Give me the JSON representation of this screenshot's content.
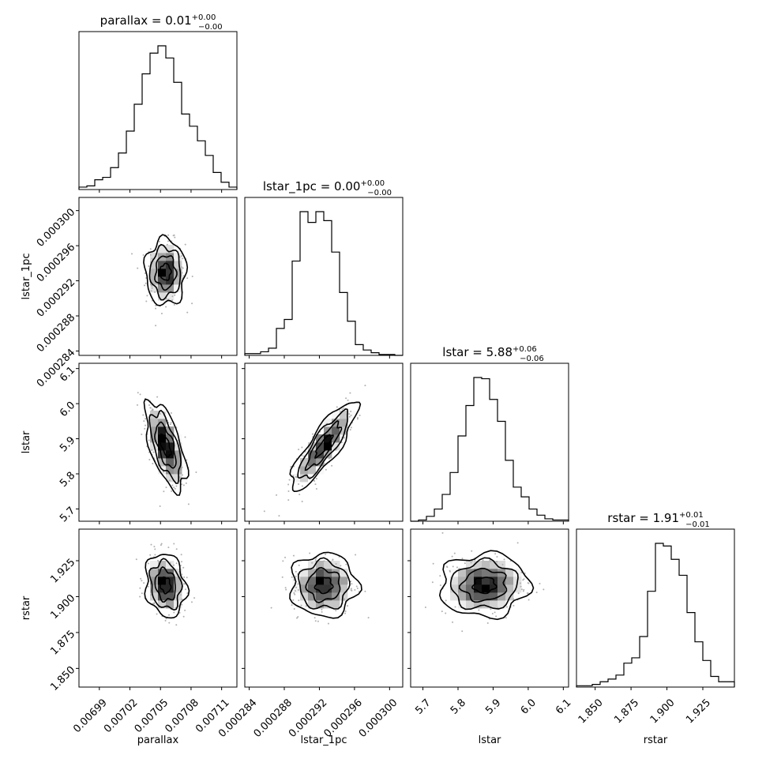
{
  "chart_data": {
    "type": "corner",
    "parameters": [
      {
        "name": "parallax",
        "xlabel": "parallax",
        "title_value": "0.01",
        "title_plus": "+0.00",
        "title_minus": "−0.00",
        "range": [
          0.00697,
          0.007125
        ],
        "ticks": [
          {
            "v": 0.00699,
            "label": "0.00699"
          },
          {
            "v": 0.00702,
            "label": "0.00702"
          },
          {
            "v": 0.00705,
            "label": "0.00705"
          },
          {
            "v": 0.00708,
            "label": "0.00708"
          },
          {
            "v": 0.00711,
            "label": "0.00711"
          }
        ],
        "hist": [
          2,
          3,
          8,
          10,
          18,
          30,
          48,
          70,
          95,
          112,
          118,
          108,
          88,
          62,
          52,
          40,
          28,
          14,
          6,
          2
        ]
      },
      {
        "name": "lstar_1pc",
        "xlabel": "lstar_1pc",
        "title_value": "0.00",
        "title_plus": "+0.00",
        "title_minus": "−0.00",
        "range": [
          0.0002835,
          0.0003015
        ],
        "ticks": [
          {
            "v": 0.000284,
            "label": "0.000284"
          },
          {
            "v": 0.000288,
            "label": "0.000288"
          },
          {
            "v": 0.000292,
            "label": "0.000292"
          },
          {
            "v": 0.000296,
            "label": "0.000296"
          },
          {
            "v": 0.0003,
            "label": "0.000300"
          }
        ],
        "hist": [
          2,
          2,
          4,
          8,
          30,
          40,
          105,
          160,
          148,
          160,
          150,
          115,
          70,
          38,
          12,
          6,
          3,
          1,
          1,
          0
        ]
      },
      {
        "name": "lstar",
        "xlabel": "lstar",
        "title_value": "5.88",
        "title_plus": "+0.06",
        "title_minus": "−0.06",
        "range": [
          5.665,
          6.115
        ],
        "ticks": [
          {
            "v": 5.7,
            "label": "5.7"
          },
          {
            "v": 5.8,
            "label": "5.8"
          },
          {
            "v": 5.9,
            "label": "5.9"
          },
          {
            "v": 6.0,
            "label": "6.0"
          },
          {
            "v": 6.1,
            "label": "6.1"
          }
        ],
        "hist": [
          0,
          1,
          4,
          10,
          22,
          40,
          70,
          95,
          118,
          117,
          100,
          82,
          50,
          28,
          20,
          10,
          5,
          2,
          1,
          1
        ]
      },
      {
        "name": "rstar",
        "xlabel": "rstar",
        "title_value": "1.91",
        "title_plus": "+0.01",
        "title_minus": "−0.01",
        "range": [
          1.837,
          1.947
        ],
        "ticks": [
          {
            "v": 1.85,
            "label": "1.850"
          },
          {
            "v": 1.875,
            "label": "1.875"
          },
          {
            "v": 1.9,
            "label": "1.900"
          },
          {
            "v": 1.925,
            "label": "1.925"
          }
        ],
        "hist": [
          1,
          1,
          2,
          4,
          6,
          9,
          18,
          22,
          38,
          72,
          108,
          106,
          96,
          84,
          56,
          34,
          20,
          8,
          4,
          4
        ]
      }
    ],
    "pairs": [
      {
        "row": 1,
        "col": 0,
        "center": [
          0.007055,
          0.000293
        ],
        "sigma": [
          9.5e-06,
          1.8e-06
        ],
        "rho": 0.0
      },
      {
        "row": 2,
        "col": 0,
        "center": [
          0.007055,
          5.88
        ],
        "sigma": [
          9.5e-06,
          0.06
        ],
        "rho": -0.6
      },
      {
        "row": 2,
        "col": 1,
        "center": [
          0.0002925,
          5.88
        ],
        "sigma": [
          1.8e-06,
          0.06
        ],
        "rho": 0.85
      },
      {
        "row": 3,
        "col": 0,
        "center": [
          0.007055,
          1.908
        ],
        "sigma": [
          9.5e-06,
          0.0105
        ],
        "rho": -0.15
      },
      {
        "row": 3,
        "col": 1,
        "center": [
          0.0002925,
          1.908
        ],
        "sigma": [
          1.8e-06,
          0.0105
        ],
        "rho": 0.0
      },
      {
        "row": 3,
        "col": 2,
        "center": [
          5.875,
          1.908
        ],
        "sigma": [
          0.06,
          0.0105
        ],
        "rho": 0.05
      }
    ]
  }
}
